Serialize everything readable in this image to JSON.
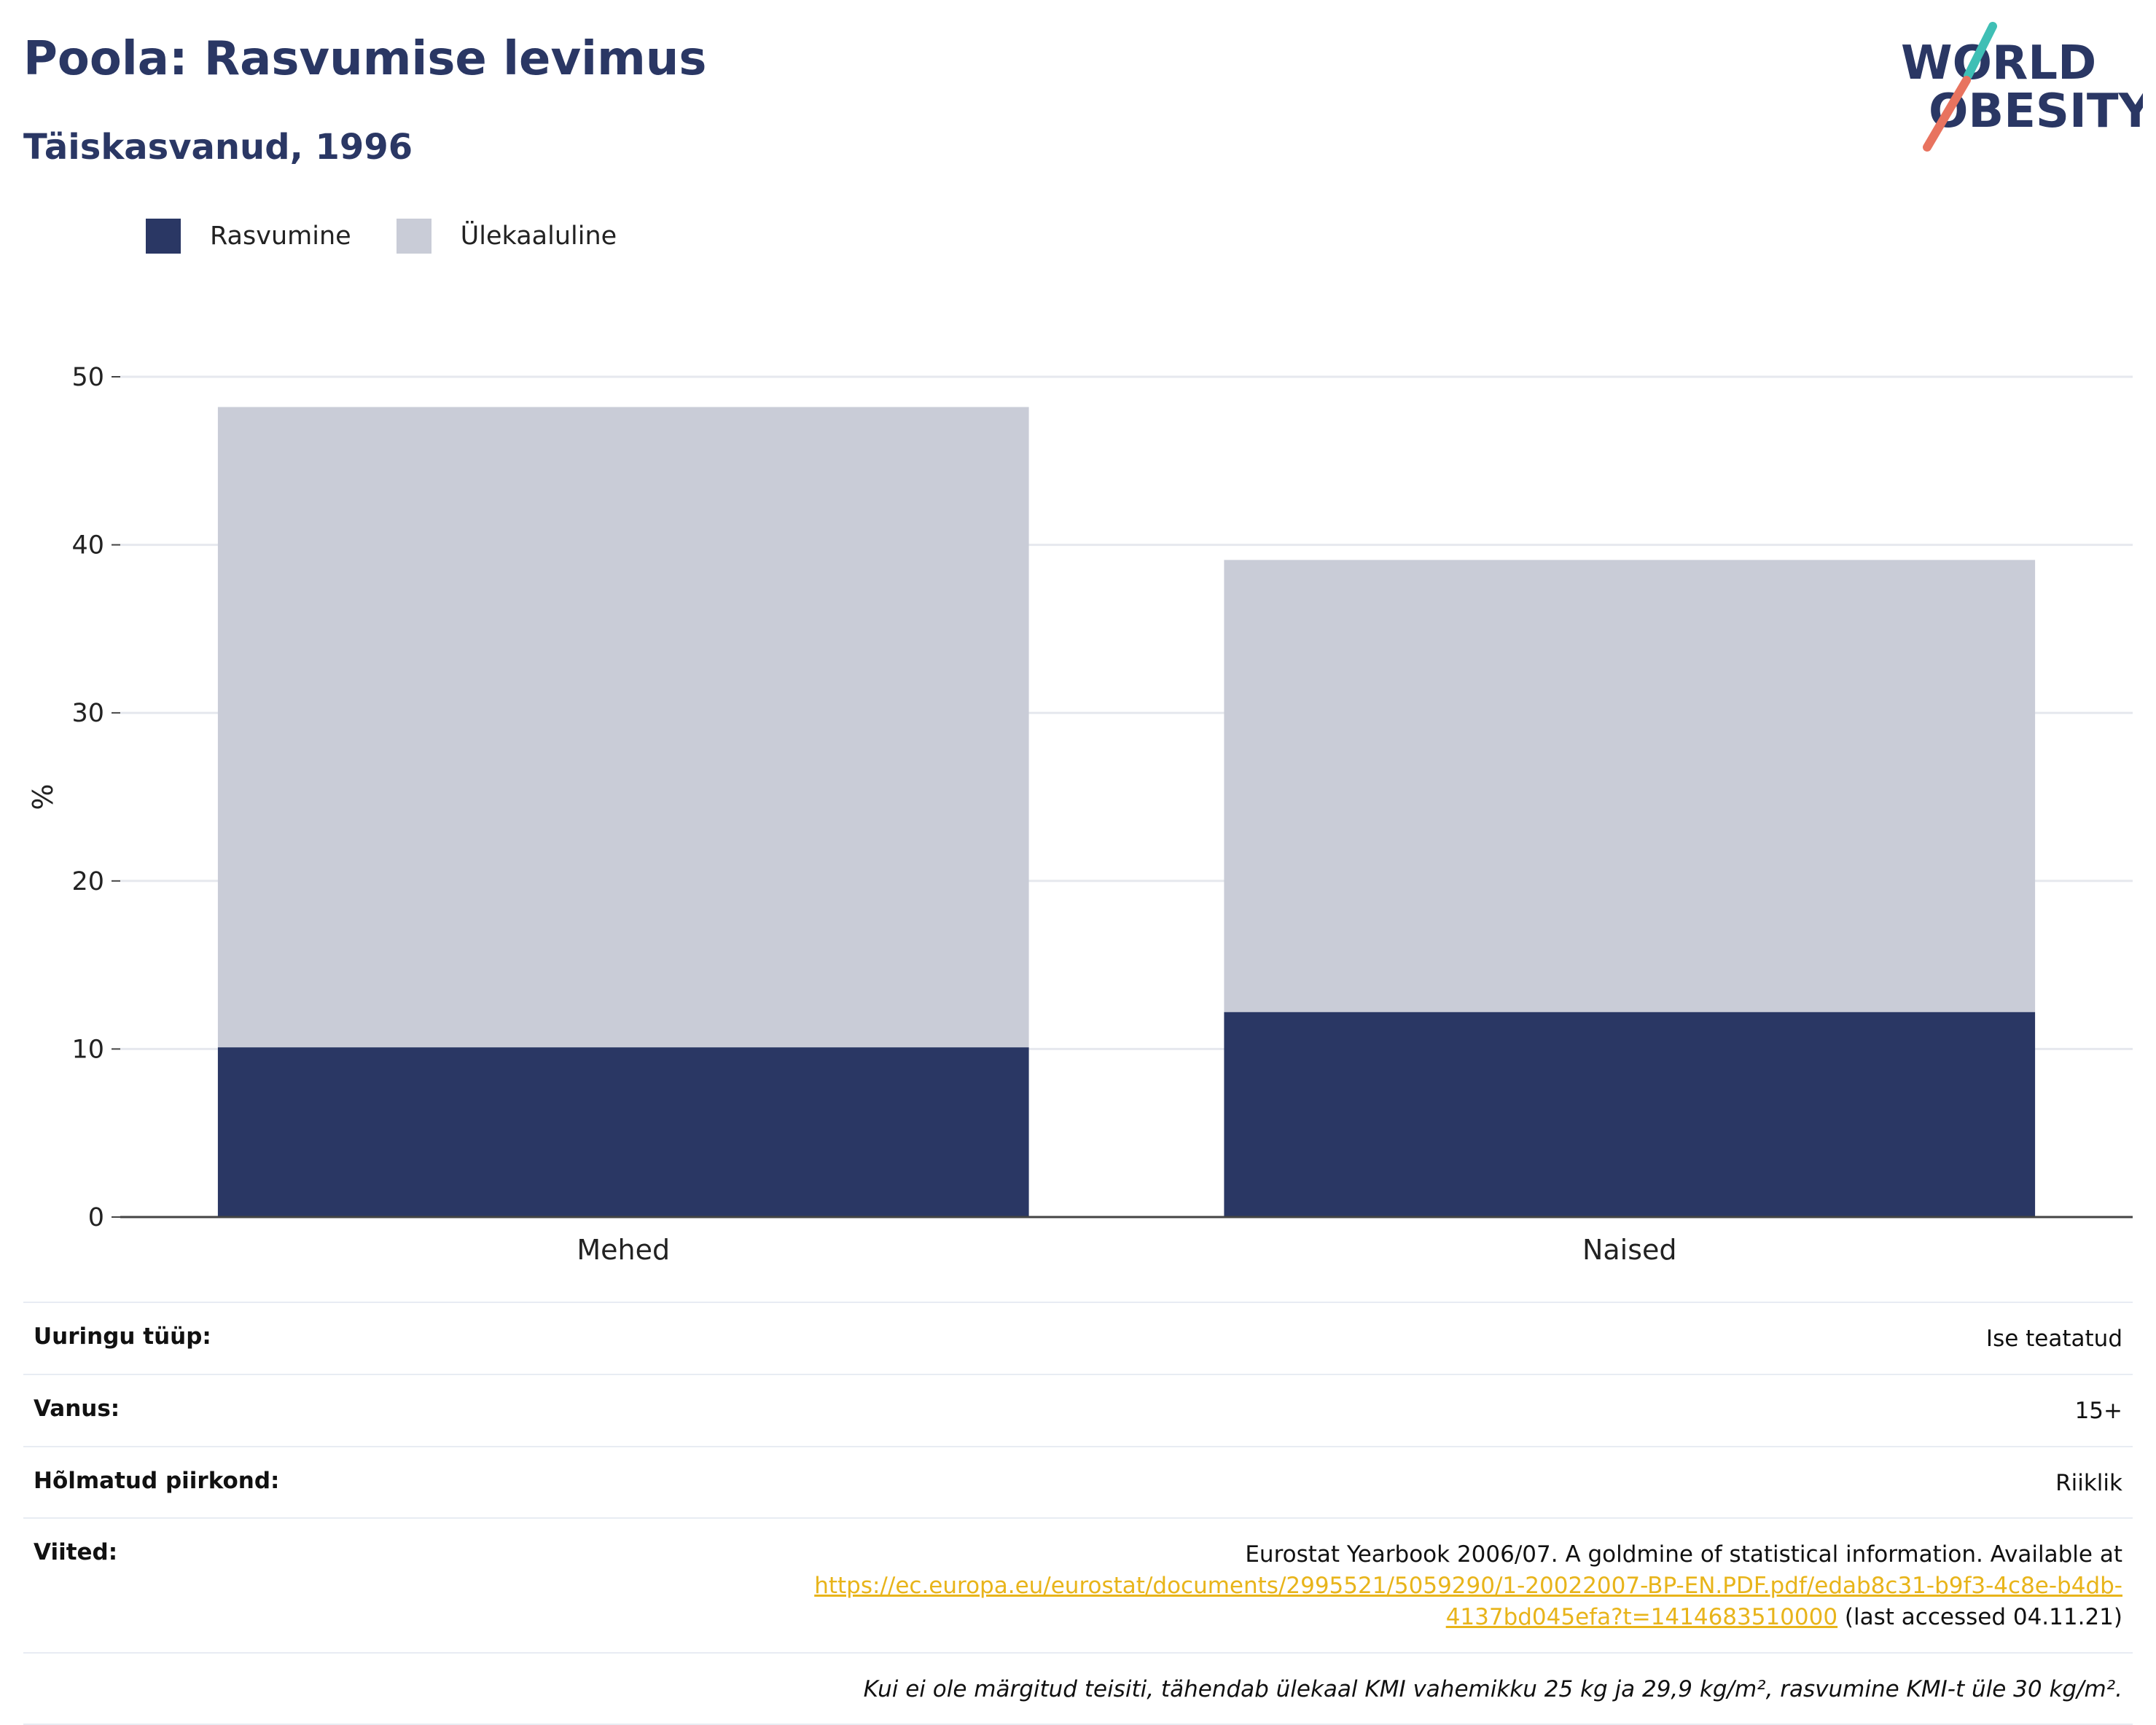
{
  "header": {
    "title": "Poola: Rasvumise levimus",
    "subtitle": "Täiskasvanud, 1996"
  },
  "logo": {
    "line1": "WORLD",
    "line2": "OBESITY"
  },
  "colors": {
    "obesity": "#2a3764",
    "overweight": "#c9ccd7",
    "accent_teal": "#3fbfb5",
    "accent_coral": "#e8735f"
  },
  "chart_data": {
    "type": "bar",
    "stacked": true,
    "categories": [
      "Mehed",
      "Naised"
    ],
    "series": [
      {
        "name": "Rasvumine",
        "values": [
          10.1,
          12.2
        ],
        "color": "#2a3764"
      },
      {
        "name": "Ülekaaluline",
        "values": [
          38.1,
          26.9
        ],
        "color": "#c9ccd7"
      }
    ],
    "ylabel": "%",
    "ylim": [
      0,
      50
    ],
    "yticks": [
      0,
      10,
      20,
      30,
      40,
      50
    ],
    "grid": true,
    "legend_position": "top-left"
  },
  "info": {
    "survey_type": {
      "label": "Uuringu tüüp:",
      "value": "Ise teatatud"
    },
    "age": {
      "label": "Vanus:",
      "value": "15+"
    },
    "region": {
      "label": "Hõlmatud piirkond:",
      "value": "Riiklik"
    },
    "references": {
      "label": "Viited:",
      "text": "Eurostat Yearbook 2006/07. A goldmine of statistical information. Available at",
      "link_part1": "https://ec.europa.eu/eurostat/documents/2995521/5059290/1-20022007-BP-EN.PDF.pdf/edab8c31-b9f3-4c8e-b4db-",
      "link_part2": "4137bd045efa?t=1414683510000",
      "suffix": " (last accessed 04.11.21)"
    },
    "note": "Kui ei ole märgitud teisiti, tähendab ülekaal KMI vahemikku 25 kg ja 29,9 kg/m², rasvumine KMI-t üle 30 kg/m²."
  }
}
